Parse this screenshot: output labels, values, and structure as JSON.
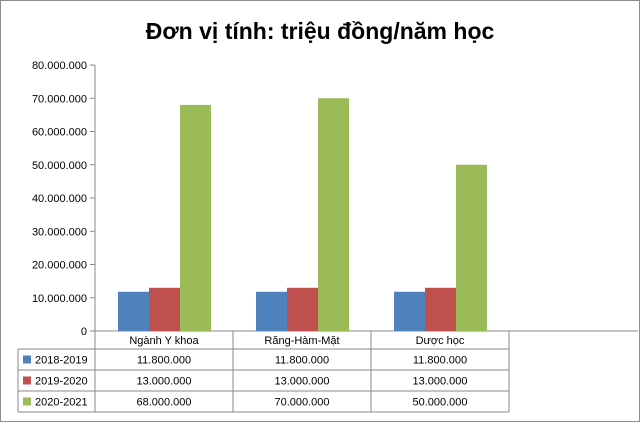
{
  "chart_data": {
    "type": "bar",
    "title": "Đơn vị tính: triệu đồng/năm học",
    "categories": [
      "Ngành Y khoa",
      "Răng-Hàm-Mặt",
      "Dược học"
    ],
    "series": [
      {
        "name": "2018-2019",
        "values": [
          11800000,
          11800000,
          11800000
        ],
        "labels": [
          "11.800.000",
          "11.800.000",
          "11.800.000"
        ],
        "color": "#4f81bd"
      },
      {
        "name": "2019-2020",
        "values": [
          13000000,
          13000000,
          13000000
        ],
        "labels": [
          "13.000.000",
          "13.000.000",
          "13.000.000"
        ],
        "color": "#c0504d"
      },
      {
        "name": "2020-2021",
        "values": [
          68000000,
          70000000,
          50000000
        ],
        "labels": [
          "68.000.000",
          "70.000.000",
          "50.000.000"
        ],
        "color": "#9bbb59"
      }
    ],
    "ylim": [
      0,
      80000000
    ],
    "yticks": [
      0,
      10000000,
      20000000,
      30000000,
      40000000,
      50000000,
      60000000,
      70000000,
      80000000
    ],
    "ytick_labels": [
      "0",
      "10.000.000",
      "20.000.000",
      "30.000.000",
      "40.000.000",
      "50.000.000",
      "60.000.000",
      "70.000.000",
      "80.000.000"
    ],
    "grid": false,
    "legend": "data-table"
  }
}
